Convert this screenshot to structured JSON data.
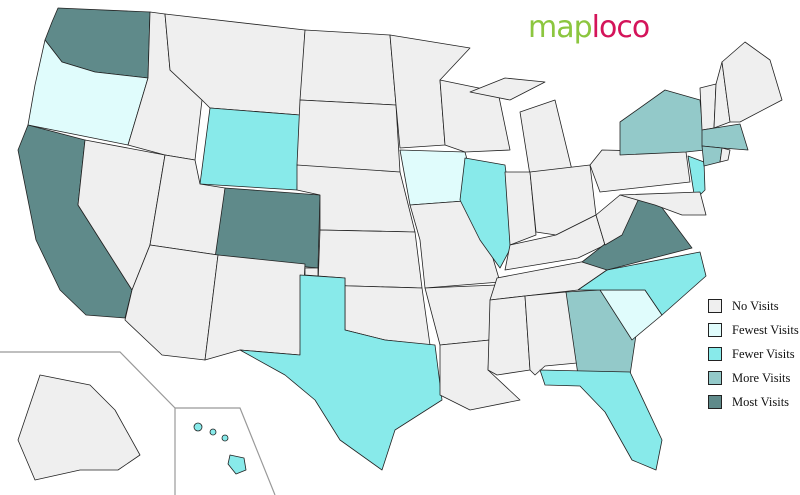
{
  "logo": {
    "part1": "map",
    "part2": "loco"
  },
  "legend": [
    {
      "key": "none",
      "label": "No Visits",
      "color": "#efefef"
    },
    {
      "key": "fewest",
      "label": "Fewest Visits",
      "color": "#e0fcfc"
    },
    {
      "key": "fewer",
      "label": "Fewer Visits",
      "color": "#88eaea"
    },
    {
      "key": "more",
      "label": "More Visits",
      "color": "#93c9c9"
    },
    {
      "key": "most",
      "label": "Most Visits",
      "color": "#5f8a8a"
    }
  ],
  "states": {
    "WA": "most",
    "OR": "fewest",
    "CA": "most",
    "NV": "none",
    "ID": "none",
    "MT": "none",
    "WY": "fewer",
    "UT": "none",
    "CO": "most",
    "AZ": "none",
    "NM": "none",
    "ND": "none",
    "SD": "none",
    "NE": "none",
    "KS": "none",
    "OK": "none",
    "TX": "fewer",
    "MN": "none",
    "IA": "fewest",
    "MO": "none",
    "AR": "none",
    "LA": "none",
    "WI": "none",
    "IL": "fewer",
    "MI": "none",
    "MIU": "none",
    "IN": "none",
    "OH": "none",
    "KY": "none",
    "TN": "none",
    "MS": "none",
    "AL": "none",
    "GA": "more",
    "FL": "fewer",
    "SC": "fewest",
    "NC": "fewer",
    "VA": "most",
    "WV": "none",
    "PA": "none",
    "NY": "more",
    "NJ": "fewer",
    "MD": "none",
    "VT": "none",
    "NH": "none",
    "ME": "none",
    "MA": "more",
    "CT": "more",
    "RI": "none",
    "AK": "none",
    "HI": "fewer"
  }
}
